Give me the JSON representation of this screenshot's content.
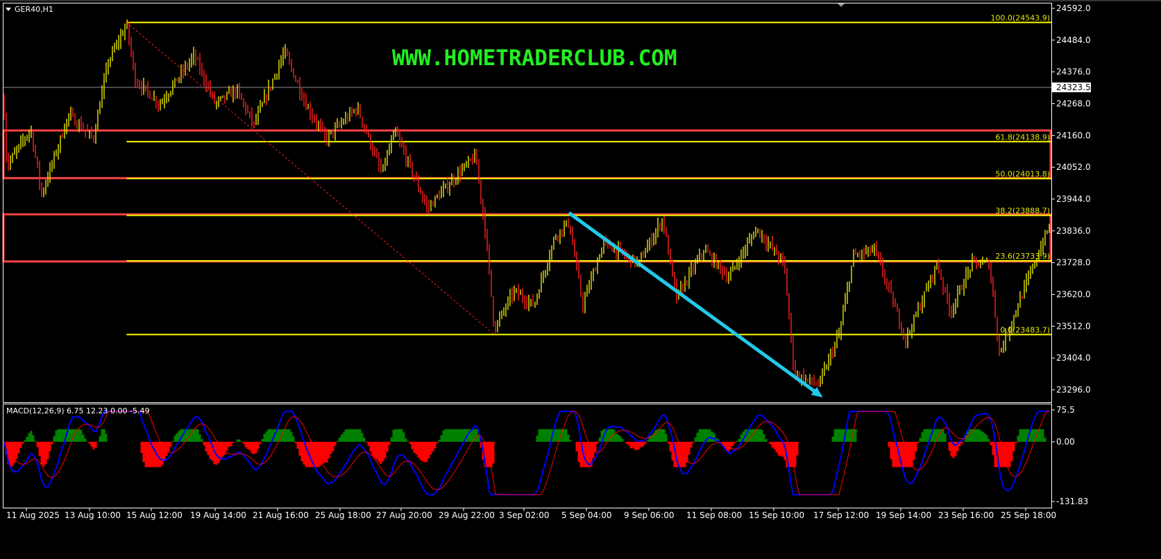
{
  "window": {
    "symbol_title": "GER40,H1"
  },
  "watermark": "WWW.HOMETRADERCLUB.COM",
  "colors": {
    "background": "#000000",
    "bull_bar": "#e8e800",
    "bear_bar": "#ff2020",
    "fib": "#ffff00",
    "zone": "#ff4444",
    "arrow": "#22c8e8",
    "watermark": "#22ee22",
    "macd_line": "#0000ff",
    "signal_line": "#ff0000",
    "hist_pos": "#008000",
    "hist_neg": "#ff0000"
  },
  "chart_data": [
    {
      "type": "candlestick-bars",
      "title": "GER40,H1",
      "y_ticks": [
        "24592.0",
        "24484.0",
        "24376.0",
        "24268.0",
        "24160.0",
        "24052.0",
        "23944.0",
        "23836.0",
        "23728.0",
        "23620.0",
        "23512.0",
        "23404.0",
        "23296.0"
      ],
      "ylim": [
        23296,
        24592
      ],
      "current_price": "24323.5",
      "x_ticks": [
        {
          "label": "11 Aug 2025",
          "t": "2025-08-11T00:00"
        },
        {
          "label": "13 Aug 10:00",
          "t": "2025-08-13T10:00"
        },
        {
          "label": "15 Aug 12:00",
          "t": "2025-08-15T12:00"
        },
        {
          "label": "19 Aug 14:00",
          "t": "2025-08-19T14:00"
        },
        {
          "label": "21 Aug 16:00",
          "t": "2025-08-21T16:00"
        },
        {
          "label": "25 Aug 18:00",
          "t": "2025-08-25T18:00"
        },
        {
          "label": "27 Aug 20:00",
          "t": "2025-08-27T20:00"
        },
        {
          "label": "29 Aug 22:00",
          "t": "2025-08-29T22:00"
        },
        {
          "label": "3 Sep 02:00",
          "t": "2025-09-03T02:00"
        },
        {
          "label": "5 Sep 04:00",
          "t": "2025-09-05T04:00"
        },
        {
          "label": "9 Sep 06:00",
          "t": "2025-09-09T06:00"
        },
        {
          "label": "11 Sep 08:00",
          "t": "2025-09-11T08:00"
        },
        {
          "label": "15 Sep 10:00",
          "t": "2025-09-15T10:00"
        },
        {
          "label": "17 Sep 12:00",
          "t": "2025-09-17T12:00"
        },
        {
          "label": "19 Sep 14:00",
          "t": "2025-09-19T14:00"
        },
        {
          "label": "23 Sep 16:00",
          "t": "2025-09-23T16:00"
        },
        {
          "label": "25 Sep 18:00",
          "t": "2025-09-25T18:00"
        }
      ],
      "price_path": [
        [
          "2025-08-10T03:00",
          24279
        ],
        [
          "2025-08-10T06:00",
          24055
        ],
        [
          "2025-08-11T04:00",
          24184
        ],
        [
          "2025-08-11T14:00",
          23960
        ],
        [
          "2025-08-12T15:00",
          24231
        ],
        [
          "2025-08-13T13:00",
          24149
        ],
        [
          "2025-08-14T01:00",
          24408
        ],
        [
          "2025-08-14T16:00",
          24538
        ],
        [
          "2025-08-14T23:00",
          24349
        ],
        [
          "2025-08-16T01:00",
          24267
        ],
        [
          "2025-08-18T06:00",
          24432
        ],
        [
          "2025-08-19T14:00",
          24267
        ],
        [
          "2025-08-20T07:00",
          24314
        ],
        [
          "2025-08-20T21:00",
          24196
        ],
        [
          "2025-08-22T03:00",
          24444
        ],
        [
          "2025-08-23T12:00",
          24267
        ],
        [
          "2025-08-24T20:00",
          24149
        ],
        [
          "2025-08-26T08:00",
          24255
        ],
        [
          "2025-08-27T04:00",
          24031
        ],
        [
          "2025-08-27T15:00",
          24173
        ],
        [
          "2025-08-28T17:00",
          23913
        ],
        [
          "2025-08-29T18:00",
          24031
        ],
        [
          "2025-08-30T18:00",
          24090
        ],
        [
          "2025-08-31T11:00",
          23819
        ],
        [
          "2025-09-01T01:00",
          23501
        ],
        [
          "2025-09-02T09:00",
          23631
        ],
        [
          "2025-09-03T10:00",
          23584
        ],
        [
          "2025-09-04T03:00",
          23819
        ],
        [
          "2025-09-04T14:00",
          23866
        ],
        [
          "2025-09-05T01:00",
          23584
        ],
        [
          "2025-09-06T07:00",
          23796
        ],
        [
          "2025-09-08T14:00",
          23725
        ],
        [
          "2025-09-09T17:00",
          23878
        ],
        [
          "2025-09-10T04:00",
          23608
        ],
        [
          "2025-09-11T02:00",
          23772
        ],
        [
          "2025-09-12T11:00",
          23678
        ],
        [
          "2025-09-14T07:00",
          23843
        ],
        [
          "2025-09-15T18:00",
          23725
        ],
        [
          "2025-09-16T02:00",
          23348
        ],
        [
          "2025-09-16T21:00",
          23313
        ],
        [
          "2025-09-17T13:00",
          23489
        ],
        [
          "2025-09-18T00:00",
          23749
        ],
        [
          "2025-09-18T17:00",
          23772
        ],
        [
          "2025-09-19T01:00",
          23678
        ],
        [
          "2025-09-19T22:00",
          23466
        ],
        [
          "2025-09-21T01:00",
          23608
        ],
        [
          "2025-09-21T23:00",
          23725
        ],
        [
          "2025-09-22T20:00",
          23561
        ],
        [
          "2025-09-23T23:00",
          23725
        ],
        [
          "2025-09-24T13:00",
          23725
        ],
        [
          "2025-09-24T21:00",
          23419
        ],
        [
          "2025-09-25T14:00",
          23608
        ],
        [
          "2025-09-26T12:00",
          23843
        ]
      ],
      "fibonacci": {
        "start": {
          "t": "2025-08-14T16:00",
          "price": 24543.9
        },
        "end": {
          "t": "2025-09-01T01:00",
          "price": 23483.7
        },
        "levels": [
          {
            "label": "100.0(24543.9)",
            "price": 24543.9
          },
          {
            "label": "61.8(24138.9)",
            "price": 24138.9
          },
          {
            "label": "50.0(24013.8)",
            "price": 24013.8
          },
          {
            "label": "38.2(23888.7)",
            "price": 23888.7
          },
          {
            "label": "23.6(23733.9)",
            "price": 23733.9
          },
          {
            "label": "0.0(23483.7)",
            "price": 23483.7
          }
        ]
      },
      "zones": [
        {
          "top": 24177,
          "bottom": 24015
        },
        {
          "top": 23892,
          "bottom": 23732
        }
      ],
      "arrow": {
        "from": {
          "t": "2025-09-04T14:00",
          "price": 23897
        },
        "to": {
          "t": "2025-09-17T00:00",
          "price": 23270
        }
      }
    },
    {
      "type": "macd",
      "label": "MACD(12,26,9) 6.75 12.23 0.00 -5.49",
      "params": [
        12,
        26,
        9
      ],
      "y_ticks": [
        "75.5",
        "0.00",
        "-131.83"
      ],
      "ylim": [
        -131.83,
        75.5
      ]
    }
  ]
}
